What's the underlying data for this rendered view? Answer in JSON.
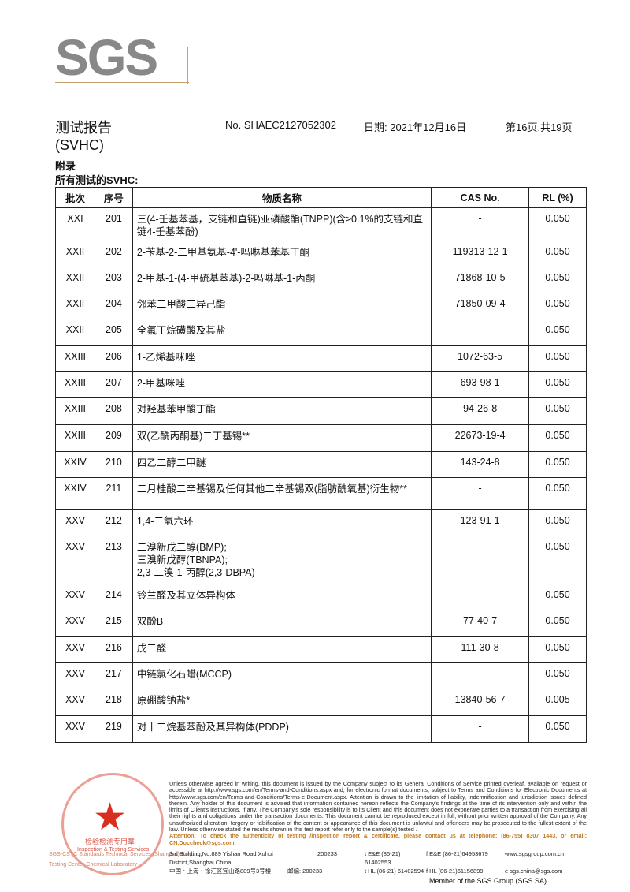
{
  "logo": "SGS",
  "header": {
    "title": "测试报告",
    "subtitle": "(SVHC)",
    "report_no": "No. SHAEC2127052302",
    "date": "日期: 2021年12月16日",
    "page": "第16页,共19页"
  },
  "section": {
    "appendix": "附录",
    "all_tested": "所有测试的SVHC:"
  },
  "table": {
    "columns": [
      "批次",
      "序号",
      "物质名称",
      "CAS No.",
      "RL (%)"
    ],
    "rows": [
      [
        "XXI",
        "201",
        "三(4-壬基苯基，支链和直链)亚磷酸酯(TNPP)(含≥0.1%的支链和直链4-壬基苯酚)",
        "-",
        "0.050"
      ],
      [
        "XXII",
        "202",
        "2-苄基-2-二甲基氨基-4'-吗啉基苯基丁酮",
        "119313-12-1",
        "0.050"
      ],
      [
        "XXII",
        "203",
        "2-甲基-1-(4-甲硫基苯基)-2-吗啉基-1-丙酮",
        "71868-10-5",
        "0.050"
      ],
      [
        "XXII",
        "204",
        "邻苯二甲酸二异己酯",
        "71850-09-4",
        "0.050"
      ],
      [
        "XXII",
        "205",
        "全氟丁烷磺酸及其盐",
        "-",
        "0.050"
      ],
      [
        "XXIII",
        "206",
        "1-乙烯基咪唑",
        "1072-63-5",
        "0.050"
      ],
      [
        "XXIII",
        "207",
        "2-甲基咪唑",
        "693-98-1",
        "0.050"
      ],
      [
        "XXIII",
        "208",
        "对羟基苯甲酸丁酯",
        "94-26-8",
        "0.050"
      ],
      [
        "XXIII",
        "209",
        "双(乙酰丙酮基)二丁基锡**",
        "22673-19-4",
        "0.050"
      ],
      [
        "XXIV",
        "210",
        "四乙二醇二甲醚",
        "143-24-8",
        "0.050"
      ],
      [
        "XXIV",
        "211",
        "二月桂酸二辛基锡及任何其他二辛基锡双(脂肪酰氧基)衍生物**",
        "-",
        "0.050"
      ],
      [
        "XXV",
        "212",
        "1,4-二氧六环",
        "123-91-1",
        "0.050"
      ],
      [
        "XXV",
        "213",
        "二溴新戊二醇(BMP);\n三溴新戊醇(TBNPA);\n2,3-二溴-1-丙醇(2,3-DBPA)",
        "-",
        "0.050"
      ],
      [
        "XXV",
        "214",
        "铃兰醛及其立体异构体",
        "-",
        "0.050"
      ],
      [
        "XXV",
        "215",
        "双酚B",
        "77-40-7",
        "0.050"
      ],
      [
        "XXV",
        "216",
        "戊二醛",
        "111-30-8",
        "0.050"
      ],
      [
        "XXV",
        "217",
        "中链氯化石蜡(MCCP)",
        "-",
        "0.050"
      ],
      [
        "XXV",
        "218",
        "原硼酸钠盐*",
        "13840-56-7",
        "0.005"
      ],
      [
        "XXV",
        "219",
        "对十二烷基苯酚及其异构体(PDDP)",
        "-",
        "0.050"
      ]
    ]
  },
  "footer": {
    "disclaimer": "Unless otherwise agreed in writing, this document is issued by the Company subject to its General Conditions of Service printed overleaf, available on request or accessible at http://www.sgs.com/en/Terms-and-Conditions.aspx and, for electronic format documents, subject to Terms and Conditions for Electronic Documents at http://www.sgs.com/en/Terms-and-Conditions/Terms-e-Document.aspx. Attention is drawn to the limitation of liability, indemnification and jurisdiction issues defined therein. Any holder of this document is advised that information contained hereon reflects the Company's findings at the time of its intervention only and within the limits of Client's instructions, if any. The Company's sole responsibility is to its Client and this document does not exonerate parties to a transaction from exercising all their rights and obligations under the transaction documents. This document cannot be reproduced except in full, without prior written approval of the Company. Any unauthorized alteration, forgery or falsification of the content or appearance of this document is unlawful and offenders may be prosecuted to the fullest extent of the law. Unless otherwise stated the results shown in this test report refer only to the sample(s) tested .",
    "attention": "Attention: To check the authenticity of testing /inspection report & certificate, please contact us at telephone: (86-755) 8307 1443, or email: CN.Doccheck@sgs.com",
    "addr_en": "3rd Building,No.889 Yishan Road Xuhui District,Shanghai China",
    "zip_en": "200233",
    "tel1": "t E&E (86-21) 61402553",
    "fax1": "f E&E (86-21)64953679",
    "web": "www.sgsgroup.com.cn",
    "addr_cn": "中国・上海・徐汇区宜山路889号3号楼",
    "zip_cn": "邮编: 200233",
    "tel2": "t HL (86-21) 61402594",
    "fax2": "f HL (86-21)61156899",
    "email": "e sgs.china@sgs.com",
    "member": "Member of the SGS Group (SGS SA)",
    "stamp_text": "检验检测专用章",
    "stamp_en": "Inspection & Testing Services",
    "side1": "SGS-CSTC Standards Technical Services (Shanghai) Co.,Ltd.",
    "side2": "Testing Center-Chemical Laboratory"
  }
}
